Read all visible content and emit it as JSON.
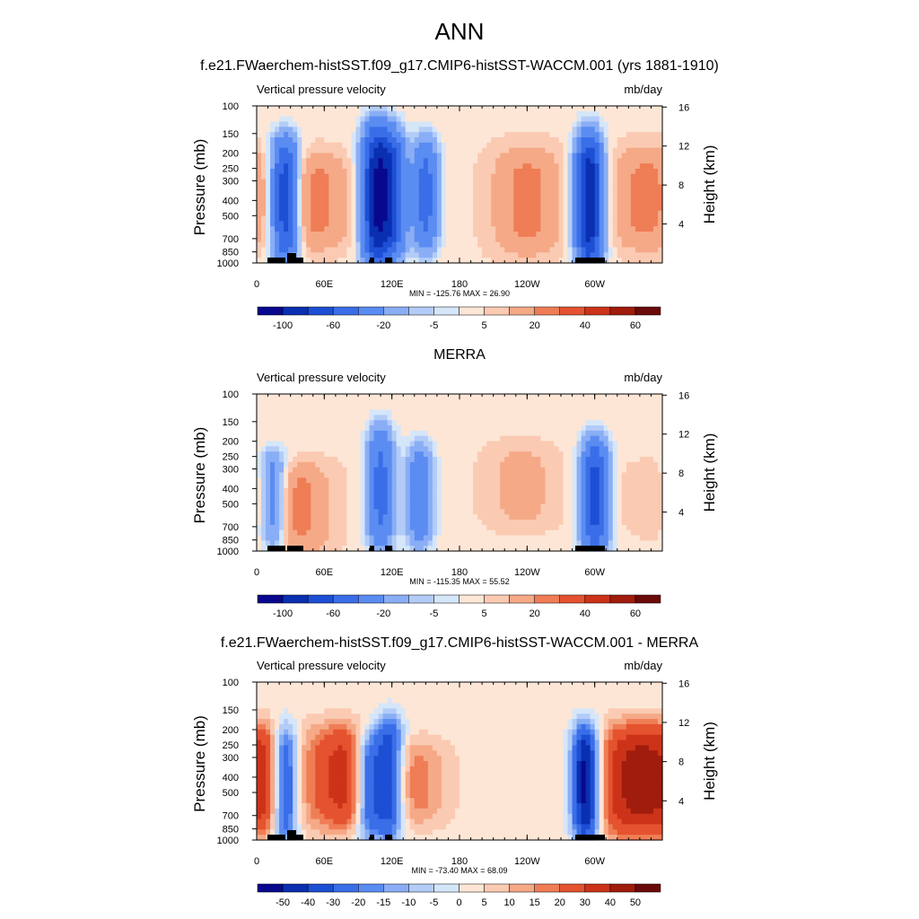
{
  "page": {
    "title": "ANN"
  },
  "chart_data": [
    {
      "type": "heatmap",
      "title": "f.e21.FWaerchem-histSST.f09_g17.CMIP6-histSST-WACCM.001 (yrs 1881-1910)",
      "left_label": "Vertical pressure velocity",
      "right_label": "mb/day",
      "ylabel": "Pressure (mb)",
      "ylabel_right": "Height (km)",
      "y_ticks": [
        "100",
        "150",
        "200",
        "250",
        "300",
        "400",
        "500",
        "700",
        "850",
        "1000"
      ],
      "y_right_ticks": [
        "16",
        "12",
        "8",
        "4"
      ],
      "x_ticks": [
        "0",
        "60E",
        "120E",
        "180",
        "120W",
        "60W"
      ],
      "stats": "MIN = -125.76  MAX =  26.90",
      "colorbar_labels": [
        "-100",
        "",
        "-60",
        "",
        "-20",
        "",
        "-5",
        "",
        "5",
        "",
        "20",
        "",
        "40",
        "",
        "60"
      ],
      "min": -125.76,
      "max": 26.9,
      "features": [
        {
          "lon": 25,
          "p_top": 170,
          "p_bot": 900,
          "value": -80
        },
        {
          "lon": 52,
          "p_top": 220,
          "p_bot": 750,
          "value": 20
        },
        {
          "lon": 105,
          "p_top": 140,
          "p_bot": 1000,
          "value": -90
        },
        {
          "lon": 120,
          "p_top": 150,
          "p_bot": 900,
          "value": -70
        },
        {
          "lon": 150,
          "p_top": 170,
          "p_bot": 800,
          "value": -50
        },
        {
          "lon": 240,
          "p_top": 200,
          "p_bot": 800,
          "value": 20
        },
        {
          "lon": 295,
          "p_top": 160,
          "p_bot": 1000,
          "value": -100
        },
        {
          "lon": 345,
          "p_top": 200,
          "p_bot": 750,
          "value": 20
        }
      ]
    },
    {
      "type": "heatmap",
      "title": "MERRA",
      "left_label": "Vertical pressure velocity",
      "right_label": "mb/day",
      "ylabel": "Pressure (mb)",
      "ylabel_right": "Height (km)",
      "y_ticks": [
        "100",
        "150",
        "200",
        "250",
        "300",
        "400",
        "500",
        "700",
        "850",
        "1000"
      ],
      "y_right_ticks": [
        "16",
        "12",
        "8",
        "4"
      ],
      "x_ticks": [
        "0",
        "60E",
        "120E",
        "180",
        "120W",
        "60W"
      ],
      "stats": "MIN = -115.35  MAX =  55.52",
      "colorbar_labels": [
        "-100",
        "",
        "-60",
        "",
        "-20",
        "",
        "-5",
        "",
        "5",
        "",
        "20",
        "",
        "40",
        "",
        "60"
      ],
      "min": -115.35,
      "max": 55.52,
      "features": [
        {
          "lon": 15,
          "p_top": 250,
          "p_bot": 900,
          "value": -40
        },
        {
          "lon": 35,
          "p_top": 300,
          "p_bot": 950,
          "value": 20
        },
        {
          "lon": 110,
          "p_top": 170,
          "p_bot": 950,
          "value": -50
        },
        {
          "lon": 145,
          "p_top": 220,
          "p_bot": 900,
          "value": -40
        },
        {
          "lon": 235,
          "p_top": 230,
          "p_bot": 650,
          "value": 10
        },
        {
          "lon": 300,
          "p_top": 200,
          "p_bot": 1000,
          "value": -70
        },
        {
          "lon": 350,
          "p_top": 300,
          "p_bot": 700,
          "value": 5
        }
      ]
    },
    {
      "type": "heatmap",
      "title": "f.e21.FWaerchem-histSST.f09_g17.CMIP6-histSST-WACCM.001 - MERRA",
      "left_label": "Vertical pressure velocity",
      "right_label": "mb/day",
      "ylabel": "Pressure (mb)",
      "ylabel_right": "Height (km)",
      "y_ticks": [
        "100",
        "150",
        "200",
        "250",
        "300",
        "400",
        "500",
        "700",
        "850",
        "1000"
      ],
      "y_right_ticks": [
        "16",
        "12",
        "8",
        "4"
      ],
      "x_ticks": [
        "0",
        "60E",
        "120E",
        "180",
        "120W",
        "60W"
      ],
      "stats": "MIN = -73.40  MAX =  68.09",
      "colorbar_labels": [
        "-50",
        "-40",
        "-30",
        "-20",
        "-15",
        "-10",
        "-5",
        "0",
        "5",
        "10",
        "15",
        "20",
        "30",
        "40",
        "50"
      ],
      "min": -73.4,
      "max": 68.09,
      "features": [
        {
          "lon": 8,
          "p_top": 200,
          "p_bot": 850,
          "value": 30
        },
        {
          "lon": 25,
          "p_top": 200,
          "p_bot": 950,
          "value": -50
        },
        {
          "lon": 75,
          "p_top": 200,
          "p_bot": 800,
          "value": 30
        },
        {
          "lon": 100,
          "p_top": 220,
          "p_bot": 900,
          "value": -40
        },
        {
          "lon": 118,
          "p_top": 180,
          "p_bot": 900,
          "value": -45
        },
        {
          "lon": 140,
          "p_top": 250,
          "p_bot": 750,
          "value": 15
        },
        {
          "lon": 292,
          "p_top": 200,
          "p_bot": 950,
          "value": -60
        },
        {
          "lon": 330,
          "p_top": 200,
          "p_bot": 900,
          "value": 35
        }
      ]
    }
  ],
  "colors": {
    "palette": [
      "#08088f",
      "#0a2fb0",
      "#1d4fd4",
      "#3a6ee8",
      "#5b8cf2",
      "#8aaef5",
      "#b3ccf7",
      "#d6e6f9",
      "#fde6d6",
      "#fbcab2",
      "#f5a987",
      "#ef7d55",
      "#e5522f",
      "#cc3318",
      "#a01c0d",
      "#6b0a0a"
    ]
  }
}
